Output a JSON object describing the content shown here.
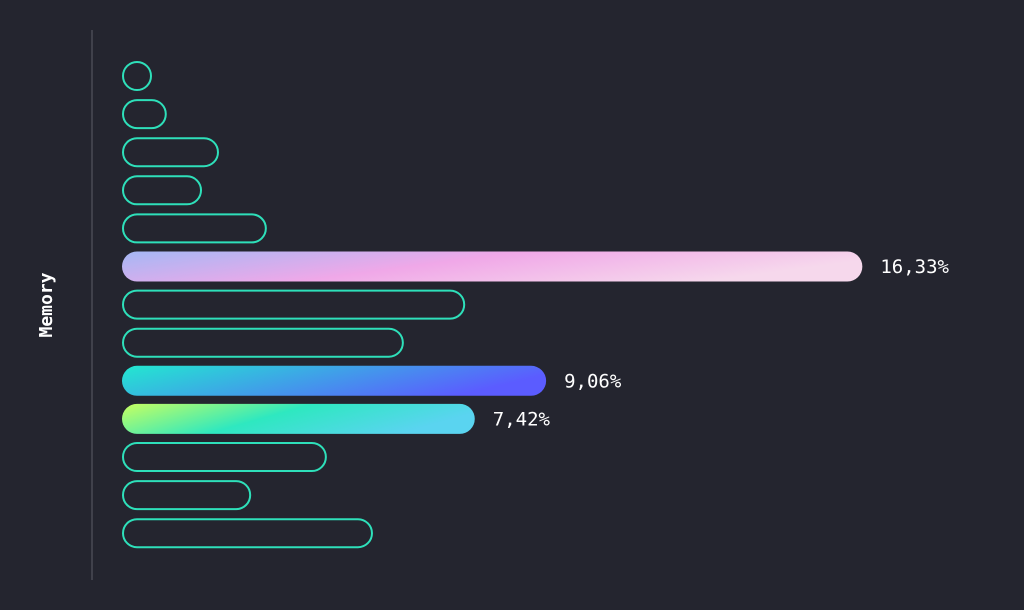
{
  "chart_data": {
    "type": "bar",
    "orientation": "horizontal",
    "y_label": "Memory",
    "values": [
      0,
      0.34,
      1.54,
      1.15,
      2.64,
      16.33,
      7.2,
      5.79,
      9.06,
      7.42,
      4.02,
      2.28,
      5.08
    ],
    "value_labels": [
      null,
      null,
      null,
      null,
      null,
      "16,33%",
      null,
      null,
      "9,06%",
      "7,42%",
      null,
      null,
      null
    ],
    "outline_color": "#2ee0ba",
    "highlight_gradients": [
      null,
      null,
      null,
      null,
      null,
      [
        "#a5b8f5",
        "#f0a8e8",
        "#f6d8ec"
      ],
      null,
      null,
      [
        "#22e8d0",
        "#5b5cff"
      ],
      [
        "#c8ff60",
        "#2ee8c0",
        "#5ad4f0"
      ],
      null,
      null,
      null
    ]
  }
}
